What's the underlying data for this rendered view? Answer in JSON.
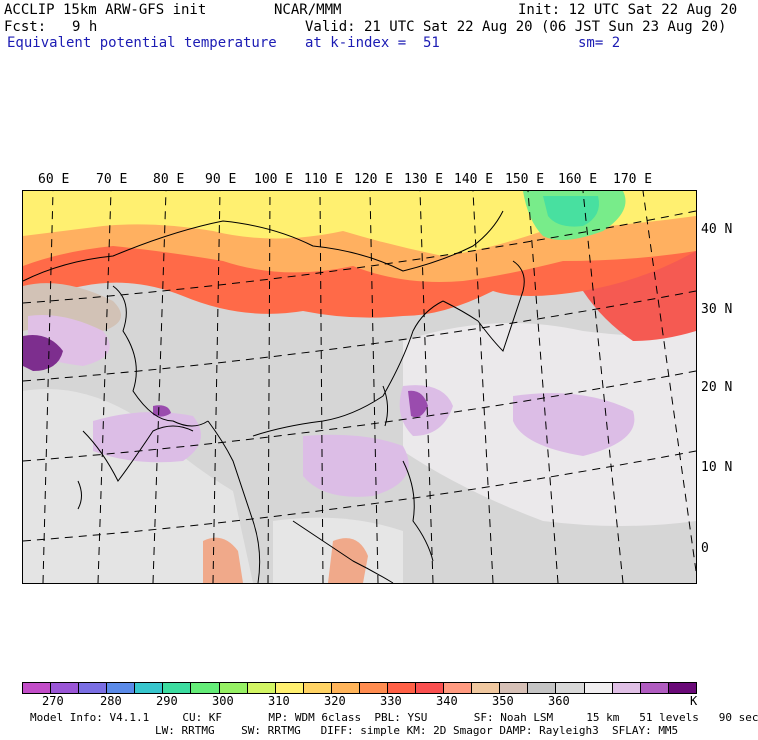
{
  "header": {
    "line1_left": "ACCLIP 15km ARW-GFS init",
    "line1_center": "NCAR/MMM",
    "line1_right": "Init: 12 UTC Sat 22 Aug 20",
    "fcst_label": "Fcst:",
    "fcst_value": "9 h",
    "valid": "Valid: 21 UTC Sat 22 Aug 20 (06 JST Sun 23 Aug 20)",
    "field_name": "Equivalent potential temperature",
    "level": "at k-index =  51",
    "smoothing": "sm= 2"
  },
  "map": {
    "lon_labels": [
      "60 E",
      "70 E",
      "80 E",
      "90 E",
      "100 E",
      "110 E",
      "120 E",
      "130 E",
      "140 E",
      "150 E",
      "160 E",
      "170 E"
    ],
    "lat_labels": [
      "40 N",
      "30 N",
      "20 N",
      "10 N",
      "0"
    ]
  },
  "colorbar": {
    "colors": [
      "#c24dc8",
      "#9a56d6",
      "#7a6ee3",
      "#5a8ae8",
      "#37c6cd",
      "#3cdca0",
      "#64ec78",
      "#96f064",
      "#d2f564",
      "#fff070",
      "#ffd364",
      "#ffb45a",
      "#ff8c50",
      "#ff6046",
      "#fa5050",
      "#ff9a80",
      "#f0c8a0",
      "#d6c0b6",
      "#c4c4c4",
      "#d8d8d8",
      "#f0eef0",
      "#e0c0e6",
      "#b05cc0",
      "#6a0a78"
    ],
    "tick_labels": [
      "270",
      "280",
      "290",
      "300",
      "310",
      "320",
      "330",
      "340",
      "350",
      "360"
    ],
    "unit": "K"
  },
  "footer": {
    "line1": "Model Info: V4.1.1     CU: KF       MP: WDM 6class  PBL: YSU       SF: Noah LSM     15 km   51 levels   90 sec",
    "line2": "LW: RRTMG    SW: RRTMG   DIFF: simple KM: 2D Smagor DAMP: Rayleigh3  SFLAY: MM5"
  }
}
